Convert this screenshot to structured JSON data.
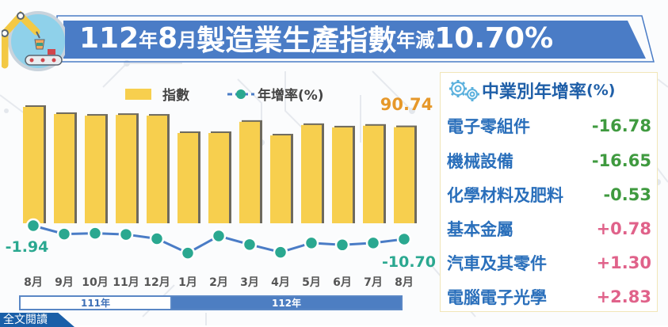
{
  "title": {
    "year_month": "112年8月",
    "parts": [
      "112",
      "年",
      "8",
      "月",
      "製造業生產指數",
      "年減",
      "10.70%"
    ]
  },
  "legend": {
    "bar_label": "指數",
    "line_label": "年增率(%)"
  },
  "colors": {
    "bar": "#f7cf4e",
    "bar_shadow": "#6e6a5e",
    "line": "#4a7cc6",
    "dot": "#2aa890",
    "negative": "#3f9a3f",
    "positive": "#e0628a",
    "banner": "#4a7cc6",
    "index_label": "#e6982a"
  },
  "chart_data": {
    "type": "bar",
    "title": "112年8月製造業生產指數年減10.70%",
    "categories": [
      "8月",
      "9月",
      "10月",
      "11月",
      "12月",
      "1月",
      "2月",
      "3月",
      "4月",
      "5月",
      "6月",
      "7月",
      "8月"
    ],
    "year_groups": [
      {
        "label": "111年",
        "months": [
          "8月",
          "9月",
          "10月",
          "11月",
          "12月"
        ]
      },
      {
        "label": "112年",
        "months": [
          "1月",
          "2月",
          "3月",
          "4月",
          "5月",
          "6月",
          "7月",
          "8月"
        ]
      }
    ],
    "series": [
      {
        "name": "指數",
        "type": "bar",
        "values": [
          101.6,
          97.8,
          96.9,
          97.3,
          96.9,
          87.6,
          87.6,
          93.6,
          86.3,
          91.9,
          90.6,
          91.5,
          90.74
        ]
      },
      {
        "name": "年增率(%)",
        "type": "line",
        "values": [
          -1.94,
          -4.1,
          -3.9,
          -4.2,
          -5.3,
          -9.0,
          -4.6,
          -6.8,
          -8.8,
          -6.4,
          -6.9,
          -6.4,
          -10.7
        ]
      }
    ],
    "data_labels": {
      "index_last": "90.74",
      "rate_first": "-1.94",
      "rate_last": "-10.70"
    },
    "xlabel": "",
    "ylabel": "",
    "legend_position": "top",
    "grid": false
  },
  "bottom_bar": {
    "year_111": "111年",
    "year_112": "112年"
  },
  "read_more": "全文閱讀",
  "panel": {
    "title": "中業別年增率",
    "unit": "(%)",
    "rows": [
      {
        "name": "電子零組件",
        "value": "-16.78",
        "sign": "neg"
      },
      {
        "name": "機械設備",
        "value": "-16.65",
        "sign": "neg"
      },
      {
        "name": "化學材料及肥料",
        "value": "-0.53",
        "sign": "neg"
      },
      {
        "name": "基本金屬",
        "value": "+0.78",
        "sign": "pos"
      },
      {
        "name": "汽車及其零件",
        "value": "+1.30",
        "sign": "pos"
      },
      {
        "name": "電腦電子光學",
        "value": "+2.83",
        "sign": "pos"
      }
    ]
  }
}
